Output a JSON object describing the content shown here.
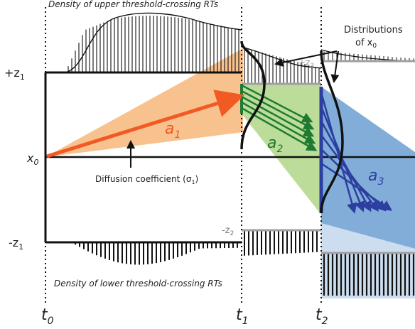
{
  "labels": {
    "upper_density": "Density of upper threshold-crossing RTs",
    "lower_density": "Density of lower threshold-crossing RTs",
    "distributions_line1": "Distributions",
    "distributions_line2_prefix": "of x",
    "distributions_line2_sub": "0",
    "diffusion_prefix": "Diffusion coefficient (σ",
    "diffusion_sub": "1",
    "diffusion_suffix": ")",
    "plus_z1": "+z",
    "plus_z1_sub": "1",
    "minus_z1": "-z",
    "minus_z1_sub": "1",
    "x0": "x",
    "x0_sub": "0",
    "plus_z3": "+z",
    "plus_z3_sub": "3",
    "minus_z2": "-z",
    "minus_z2_sub": "2",
    "t0": "t",
    "t0_sub": "0",
    "t1": "t",
    "t1_sub": "1",
    "t2": "t",
    "t2_sub": "2",
    "a1": "a",
    "a1_sub": "1",
    "a2": "a",
    "a2_sub": "2",
    "a3": "a",
    "a3_sub": "3"
  },
  "colors": {
    "drift1": "#f25a24",
    "drift1_fill": "#f7b77a",
    "drift2": "#1f7a32",
    "drift2_fill": "#b5d98f",
    "drift3": "#2c3fa0",
    "drift3_fill": "#6c9fd2",
    "threshold_gray": "#a0a0a0"
  }
}
